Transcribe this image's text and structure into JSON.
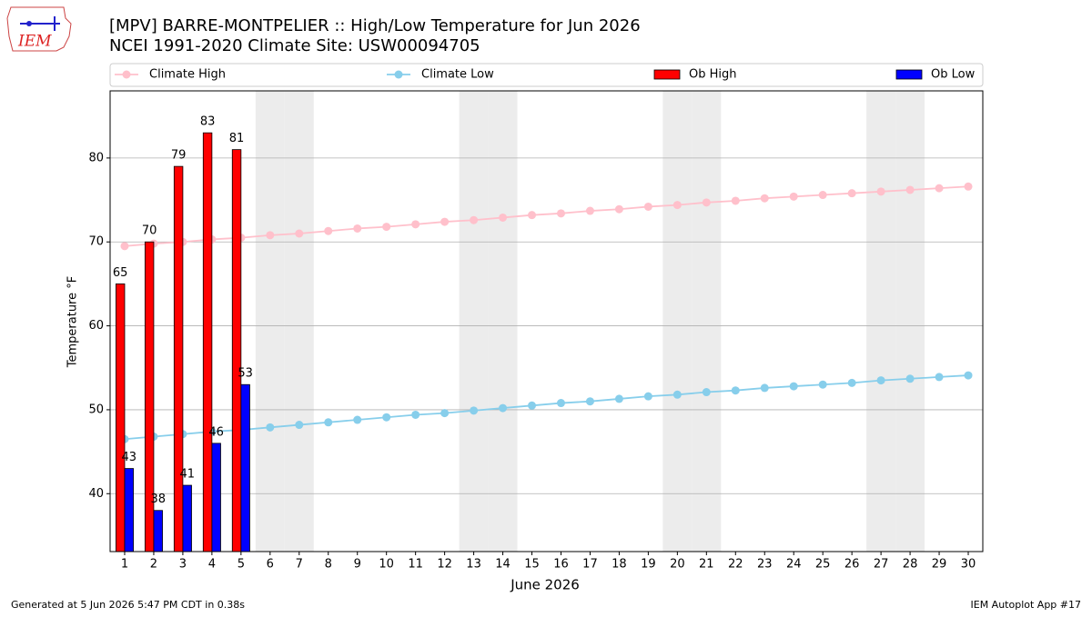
{
  "logo_text": "IEM",
  "footer_left": "Generated at 5 Jun 2026 5:47 PM CDT in 0.38s",
  "footer_right": "IEM Autoplot App #17",
  "chart_data": {
    "type": "bar_line",
    "title": "[MPV] BARRE-MONTPELIER :: High/Low Temperature for Jun 2026",
    "subtitle": "NCEI 1991-2020 Climate Site: USW00094705",
    "x_label": "June 2026",
    "y_label": "Temperature °F",
    "x": [
      1,
      2,
      3,
      4,
      5,
      6,
      7,
      8,
      9,
      10,
      11,
      12,
      13,
      14,
      15,
      16,
      17,
      18,
      19,
      20,
      21,
      22,
      23,
      24,
      25,
      26,
      27,
      28,
      29,
      30
    ],
    "xlim": [
      0.5,
      30.5
    ],
    "xticks": [
      1,
      2,
      3,
      4,
      5,
      6,
      7,
      8,
      9,
      10,
      11,
      12,
      13,
      14,
      15,
      16,
      17,
      18,
      19,
      20,
      21,
      22,
      23,
      24,
      25,
      26,
      27,
      28,
      29,
      30
    ],
    "ylim": [
      33.1,
      88
    ],
    "yticks": [
      40,
      50,
      60,
      70,
      80
    ],
    "grid": true,
    "legend": "top",
    "shaded_days": [
      6,
      7,
      13,
      14,
      20,
      21,
      27,
      28
    ],
    "series": [
      {
        "name": "Climate High",
        "kind": "line",
        "color": "#ffc0cb",
        "values": [
          69.5,
          69.8,
          70.0,
          70.3,
          70.5,
          70.8,
          71.0,
          71.3,
          71.6,
          71.8,
          72.1,
          72.4,
          72.6,
          72.9,
          73.2,
          73.4,
          73.7,
          73.9,
          74.2,
          74.4,
          74.7,
          74.9,
          75.2,
          75.4,
          75.6,
          75.8,
          76.0,
          76.2,
          76.4,
          76.6
        ]
      },
      {
        "name": "Climate Low",
        "kind": "line",
        "color": "#87ceeb",
        "values": [
          46.5,
          46.8,
          47.1,
          47.4,
          47.6,
          47.9,
          48.2,
          48.5,
          48.8,
          49.1,
          49.4,
          49.6,
          49.9,
          50.2,
          50.5,
          50.8,
          51.0,
          51.3,
          51.6,
          51.8,
          52.1,
          52.3,
          52.6,
          52.8,
          53.0,
          53.2,
          53.5,
          53.7,
          53.9,
          54.1
        ]
      },
      {
        "name": "Ob High",
        "kind": "bar",
        "color": "#ff0000",
        "values": [
          65,
          70,
          79,
          83,
          81,
          null,
          null,
          null,
          null,
          null,
          null,
          null,
          null,
          null,
          null,
          null,
          null,
          null,
          null,
          null,
          null,
          null,
          null,
          null,
          null,
          null,
          null,
          null,
          null,
          null
        ]
      },
      {
        "name": "Ob Low",
        "kind": "bar",
        "color": "#0000ff",
        "values": [
          43,
          38,
          41,
          46,
          53,
          null,
          null,
          null,
          null,
          null,
          null,
          null,
          null,
          null,
          null,
          null,
          null,
          null,
          null,
          null,
          null,
          null,
          null,
          null,
          null,
          null,
          null,
          null,
          null,
          null
        ]
      }
    ]
  }
}
